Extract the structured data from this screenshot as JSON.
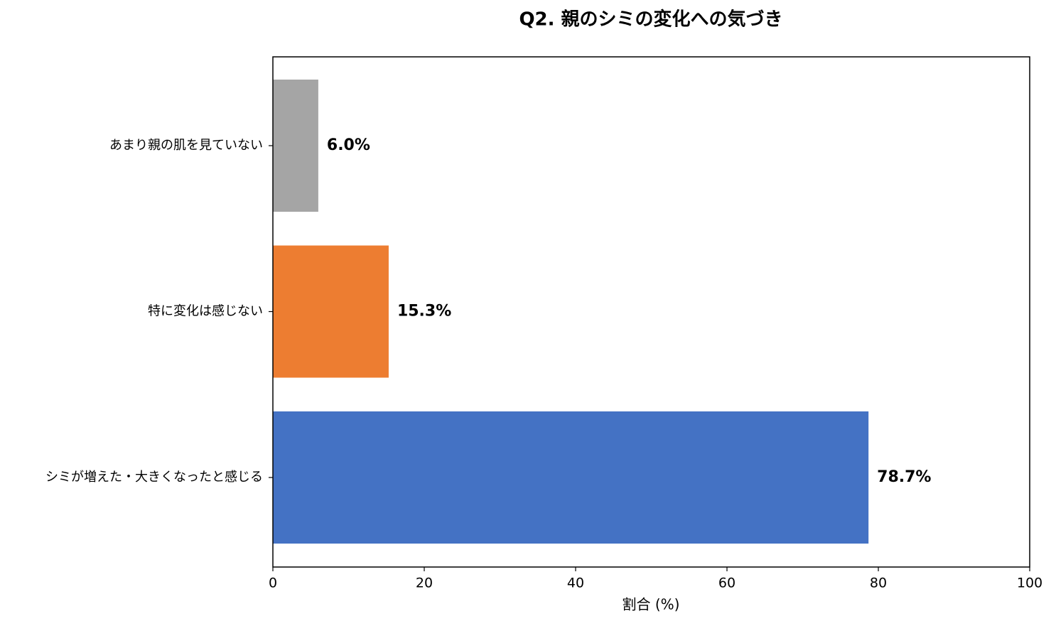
{
  "chart_data": {
    "type": "barh",
    "title": "Q2. 親のシミの変化への気づき",
    "x_label": "割合 (%)",
    "categories": [
      "あまり親の肌を見ていない",
      "特に変化は感じない",
      "シミが増えた・大きくなったと感じる"
    ],
    "values": [
      6.0,
      15.3,
      78.7
    ],
    "value_labels": [
      "6.0%",
      "15.3%",
      "78.7%"
    ],
    "colors": [
      "#a5a5a5",
      "#ed7d31",
      "#4472c4"
    ],
    "xlim": [
      0,
      100
    ],
    "xticks": [
      0,
      20,
      40,
      60,
      80,
      100
    ],
    "grid": false
  }
}
